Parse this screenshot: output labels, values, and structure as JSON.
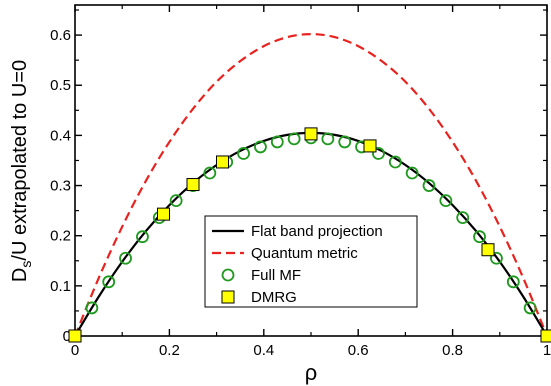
{
  "chart_data": {
    "type": "line",
    "xlabel": "ρ",
    "ylabel_main": "D",
    "ylabel_sub": "s",
    "ylabel_rest": "/U extrapolated to U=0",
    "xlim": [
      0,
      1
    ],
    "ylim": [
      0,
      0.66
    ],
    "x_ticks": [
      0,
      0.2,
      0.4,
      0.6,
      0.8,
      1
    ],
    "x_tick_labels": [
      "0",
      "0.2",
      "0.4",
      "0.6",
      "0.8",
      "1"
    ],
    "y_ticks": [
      0,
      0.1,
      0.2,
      0.3,
      0.4,
      0.5,
      0.6
    ],
    "y_tick_labels": [
      "0",
      "0.1",
      "0.2",
      "0.3",
      "0.4",
      "0.5",
      "0.6"
    ],
    "grid": false,
    "legend_position": "lower-center",
    "series": [
      {
        "name": "Flat band projection",
        "style": "solid-line",
        "color": "#000000",
        "x": [
          0,
          0.05,
          0.1,
          0.15,
          0.2,
          0.25,
          0.3,
          0.35,
          0.4,
          0.45,
          0.5,
          0.55,
          0.6,
          0.65,
          0.7,
          0.75,
          0.8,
          0.85,
          0.9,
          0.95,
          1
        ],
        "y": [
          0,
          0.078,
          0.148,
          0.209,
          0.261,
          0.305,
          0.341,
          0.369,
          0.389,
          0.401,
          0.405,
          0.401,
          0.389,
          0.369,
          0.341,
          0.305,
          0.261,
          0.209,
          0.148,
          0.078,
          0
        ]
      },
      {
        "name": "Quantum metric",
        "style": "dashed-line",
        "color": "#e8221e",
        "x": [
          0,
          0.05,
          0.1,
          0.15,
          0.2,
          0.25,
          0.3,
          0.35,
          0.4,
          0.45,
          0.5,
          0.55,
          0.6,
          0.65,
          0.7,
          0.75,
          0.8,
          0.85,
          0.9,
          0.95,
          1
        ],
        "y": [
          0,
          0.115,
          0.218,
          0.309,
          0.387,
          0.453,
          0.507,
          0.548,
          0.578,
          0.596,
          0.602,
          0.596,
          0.578,
          0.548,
          0.507,
          0.453,
          0.387,
          0.309,
          0.218,
          0.115,
          0
        ]
      },
      {
        "name": "Full MF",
        "style": "open-circle",
        "color": "#1f9a1f",
        "x": [
          0,
          0.0357,
          0.0714,
          0.1071,
          0.1429,
          0.1786,
          0.2143,
          0.25,
          0.2857,
          0.3214,
          0.3571,
          0.3929,
          0.4286,
          0.4643,
          0.5,
          0.5357,
          0.5714,
          0.6071,
          0.6429,
          0.6786,
          0.7143,
          0.75,
          0.7857,
          0.8214,
          0.8571,
          0.8929,
          0.9286,
          0.9643,
          1
        ],
        "y": [
          0,
          0.056,
          0.108,
          0.155,
          0.198,
          0.236,
          0.27,
          0.3,
          0.325,
          0.347,
          0.364,
          0.377,
          0.387,
          0.393,
          0.395,
          0.393,
          0.387,
          0.377,
          0.364,
          0.347,
          0.325,
          0.3,
          0.27,
          0.236,
          0.198,
          0.155,
          0.108,
          0.056,
          0
        ]
      },
      {
        "name": "DMRG",
        "style": "filled-square",
        "color": "#ffff00",
        "x": [
          0,
          0.1875,
          0.25,
          0.3125,
          0.5,
          0.625,
          0.875,
          1
        ],
        "y": [
          0,
          0.243,
          0.302,
          0.347,
          0.403,
          0.379,
          0.172,
          0
        ]
      }
    ]
  }
}
